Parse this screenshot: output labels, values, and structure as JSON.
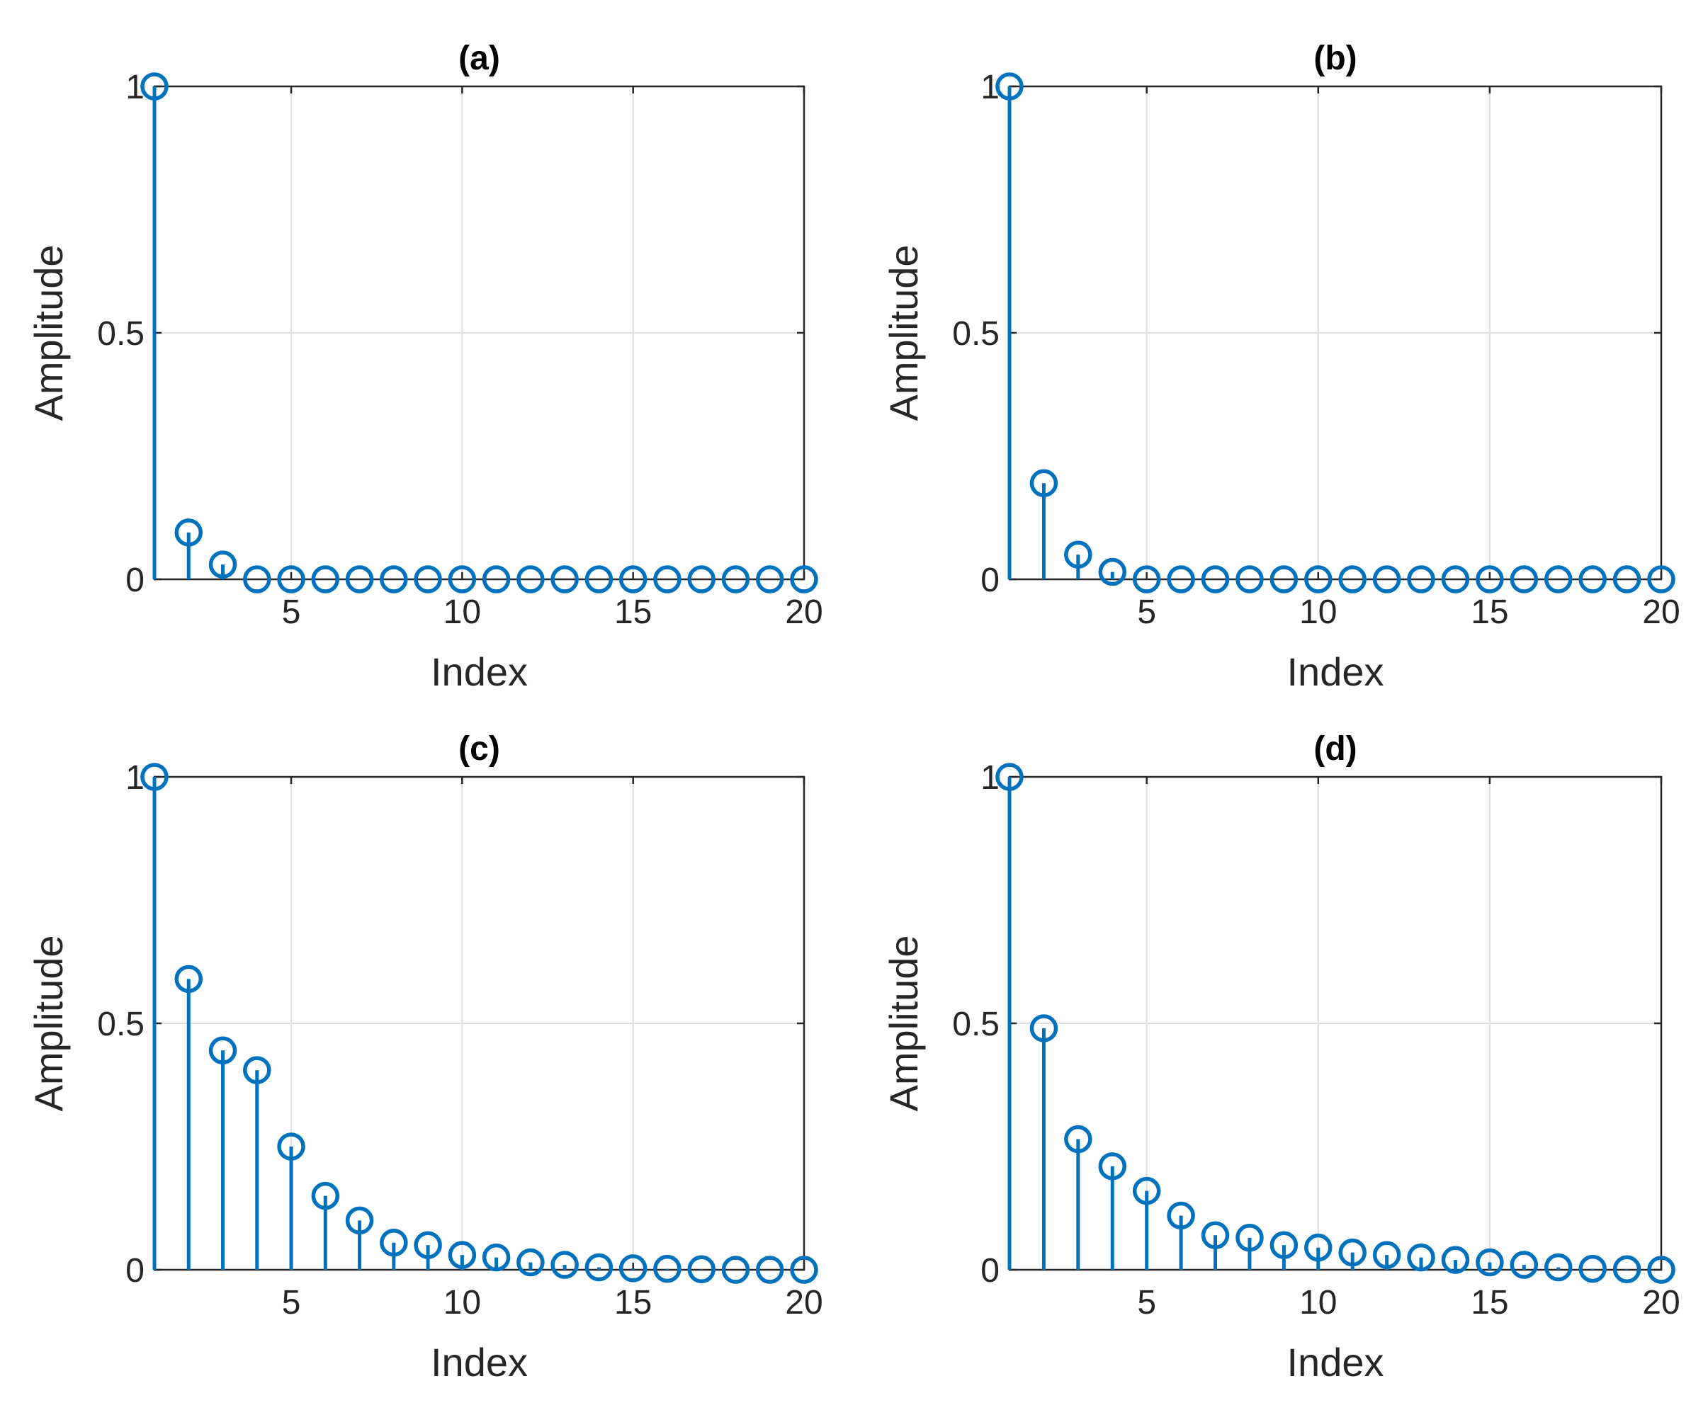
{
  "colors": {
    "stem": "#0072BD",
    "axis": "#262626",
    "grid": "#DFDFDF",
    "title": "#000000",
    "background": "#FFFFFF"
  },
  "chart_data": [
    {
      "type": "stem",
      "title": "(a)",
      "xlabel": "Index",
      "ylabel": "Amplitude",
      "xlim": [
        1,
        20
      ],
      "ylim": [
        0,
        1
      ],
      "xticks": [
        "5",
        "10",
        "15",
        "20"
      ],
      "yticks": [
        "0",
        "0.5",
        "1"
      ],
      "grid": true,
      "x": [
        1,
        2,
        3,
        4,
        5,
        6,
        7,
        8,
        9,
        10,
        11,
        12,
        13,
        14,
        15,
        16,
        17,
        18,
        19,
        20
      ],
      "values": [
        1,
        0.095,
        0.03,
        0,
        0,
        0,
        0,
        0,
        0,
        0,
        0,
        0,
        0,
        0,
        0,
        0,
        0,
        0,
        0,
        0
      ]
    },
    {
      "type": "stem",
      "title": "(b)",
      "xlabel": "Index",
      "ylabel": "Amplitude",
      "xlim": [
        1,
        20
      ],
      "ylim": [
        0,
        1
      ],
      "xticks": [
        "5",
        "10",
        "15",
        "20"
      ],
      "yticks": [
        "0",
        "0.5",
        "1"
      ],
      "grid": true,
      "x": [
        1,
        2,
        3,
        4,
        5,
        6,
        7,
        8,
        9,
        10,
        11,
        12,
        13,
        14,
        15,
        16,
        17,
        18,
        19,
        20
      ],
      "values": [
        1,
        0.195,
        0.05,
        0.015,
        0,
        0,
        0,
        0,
        0,
        0,
        0,
        0,
        0,
        0,
        0,
        0,
        0,
        0,
        0,
        0
      ]
    },
    {
      "type": "stem",
      "title": "(c)",
      "xlabel": "Index",
      "ylabel": "Amplitude",
      "xlim": [
        1,
        20
      ],
      "ylim": [
        0,
        1
      ],
      "xticks": [
        "5",
        "10",
        "15",
        "20"
      ],
      "yticks": [
        "0",
        "0.5",
        "1"
      ],
      "grid": true,
      "x": [
        1,
        2,
        3,
        4,
        5,
        6,
        7,
        8,
        9,
        10,
        11,
        12,
        13,
        14,
        15,
        16,
        17,
        18,
        19,
        20
      ],
      "values": [
        1,
        0.59,
        0.445,
        0.405,
        0.25,
        0.15,
        0.1,
        0.055,
        0.05,
        0.03,
        0.025,
        0.015,
        0.01,
        0.005,
        0.003,
        0.002,
        0.001,
        0,
        0,
        0
      ]
    },
    {
      "type": "stem",
      "title": "(d)",
      "xlabel": "Index",
      "ylabel": "Amplitude",
      "xlim": [
        1,
        20
      ],
      "ylim": [
        0,
        1
      ],
      "xticks": [
        "5",
        "10",
        "15",
        "20"
      ],
      "yticks": [
        "0",
        "0.5",
        "1"
      ],
      "grid": true,
      "x": [
        1,
        2,
        3,
        4,
        5,
        6,
        7,
        8,
        9,
        10,
        11,
        12,
        13,
        14,
        15,
        16,
        17,
        18,
        19,
        20
      ],
      "values": [
        1,
        0.49,
        0.265,
        0.21,
        0.16,
        0.11,
        0.07,
        0.065,
        0.05,
        0.045,
        0.035,
        0.03,
        0.025,
        0.02,
        0.015,
        0.01,
        0.005,
        0.002,
        0.001,
        0
      ]
    }
  ]
}
